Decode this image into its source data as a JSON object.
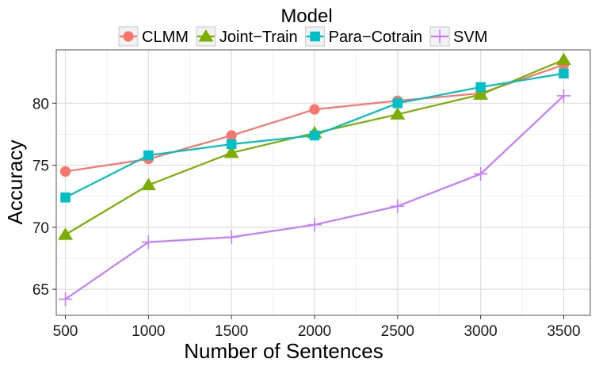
{
  "chart_data": {
    "type": "line",
    "title": "",
    "xlabel": "Number of Sentences",
    "ylabel": "Accuracy",
    "x": [
      500,
      1000,
      1500,
      2000,
      2500,
      3000,
      3500
    ],
    "x_ticks": [
      "500",
      "1000",
      "1500",
      "2000",
      "2500",
      "3000",
      "3500"
    ],
    "xlim": [
      445,
      3660
    ],
    "y_ticks": [
      "65",
      "70",
      "75",
      "80"
    ],
    "ylim": [
      62.9,
      84.3
    ],
    "grid": true,
    "legend": {
      "title": "Model",
      "position": "top"
    },
    "series": [
      {
        "name": "CLMM",
        "color": "#F8766D",
        "marker": "circle",
        "values": [
          74.5,
          75.5,
          77.4,
          79.5,
          80.2,
          80.8,
          83.1
        ]
      },
      {
        "name": "Joint−Train",
        "color": "#7CAE00",
        "marker": "triangle",
        "values": [
          69.4,
          73.4,
          76.0,
          77.6,
          79.1,
          80.7,
          83.5
        ]
      },
      {
        "name": "Para−Cotrain",
        "color": "#00BFC4",
        "marker": "square",
        "values": [
          72.4,
          75.8,
          76.7,
          77.4,
          80.0,
          81.3,
          82.4
        ]
      },
      {
        "name": "SVM",
        "color": "#C77CFF",
        "marker": "cross",
        "values": [
          64.2,
          68.8,
          69.2,
          70.2,
          71.7,
          74.3,
          80.6
        ]
      }
    ]
  }
}
